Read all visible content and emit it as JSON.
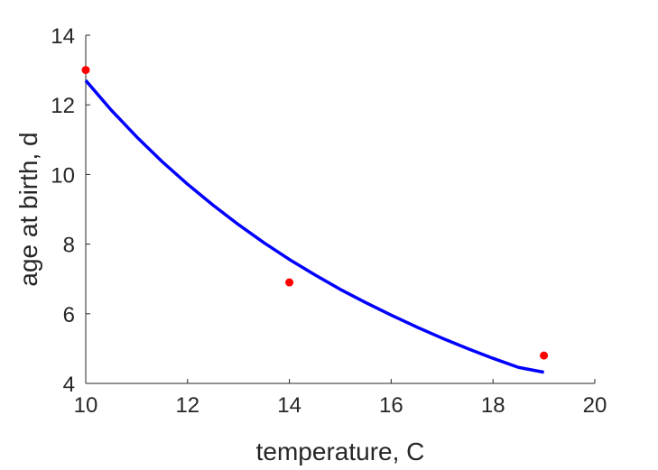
{
  "chart_data": {
    "type": "line",
    "title": "",
    "xlabel": "temperature, C",
    "ylabel": "age at birth, d",
    "xlim": [
      10,
      20
    ],
    "ylim": [
      4,
      14
    ],
    "xticks": [
      10,
      12,
      14,
      16,
      18,
      20
    ],
    "yticks": [
      4,
      6,
      8,
      10,
      12,
      14
    ],
    "grid": false,
    "series": [
      {
        "type": "line",
        "color": "#0000ff",
        "x": [
          10,
          10.5,
          11,
          11.5,
          12,
          12.5,
          13,
          13.5,
          14,
          14.5,
          15,
          15.5,
          16,
          16.5,
          17,
          17.5,
          18,
          18.5,
          19
        ],
        "y": [
          12.7,
          11.85,
          11.08,
          10.37,
          9.72,
          9.12,
          8.56,
          8.04,
          7.56,
          7.12,
          6.7,
          6.32,
          5.96,
          5.62,
          5.3,
          5.0,
          4.72,
          4.46,
          4.32
        ]
      },
      {
        "type": "scatter",
        "color": "#ff0000",
        "x": [
          10,
          14,
          19
        ],
        "y": [
          13.0,
          6.9,
          4.8
        ]
      }
    ]
  }
}
